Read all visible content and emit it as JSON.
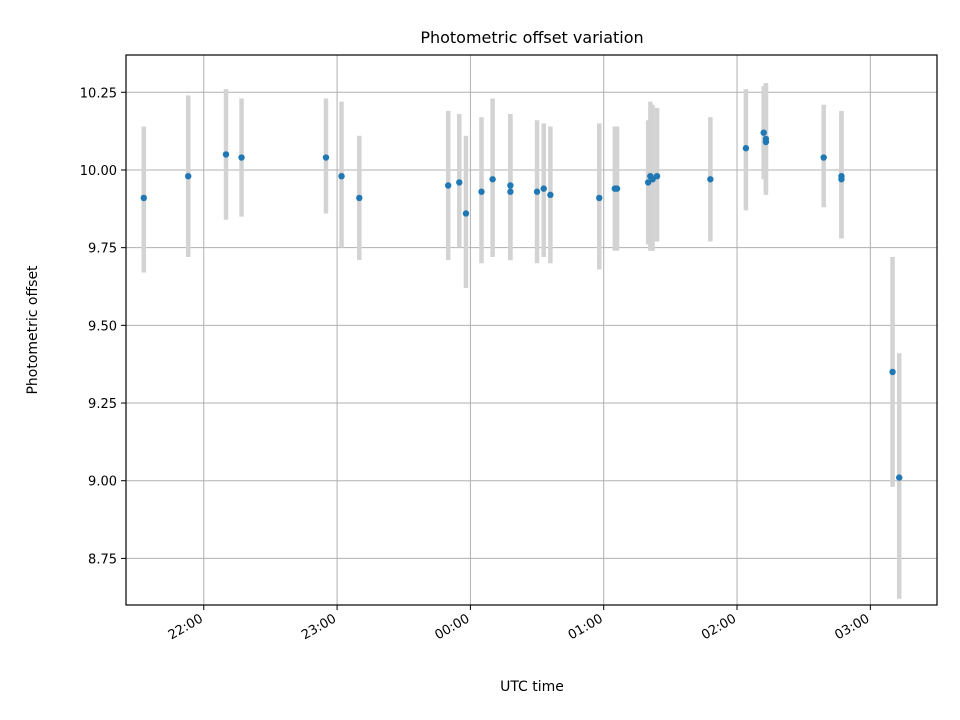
{
  "chart_data": {
    "type": "scatter",
    "title": "Photometric offset variation",
    "xlabel": "UTC time",
    "ylabel": "Photometric offset",
    "x_axis": {
      "unit": "time",
      "range": [
        "21:25",
        "03:30"
      ],
      "ticks": [
        "22:00",
        "23:00",
        "00:00",
        "01:00",
        "02:00",
        "03:00"
      ]
    },
    "y_axis": {
      "range": [
        8.6,
        10.37
      ],
      "ticks": [
        "8.75",
        "9.00",
        "9.25",
        "9.50",
        "9.75",
        "10.00",
        "10.25"
      ]
    },
    "grid": true,
    "marker_color": "#1f77b4",
    "errorbar_color": "#d3d3d3",
    "points": [
      {
        "t": "21:33",
        "y": 9.91,
        "lo": 9.67,
        "hi": 10.14
      },
      {
        "t": "21:53",
        "y": 9.98,
        "lo": 9.72,
        "hi": 10.24
      },
      {
        "t": "22:10",
        "y": 10.05,
        "lo": 9.84,
        "hi": 10.26
      },
      {
        "t": "22:17",
        "y": 10.04,
        "lo": 9.85,
        "hi": 10.23
      },
      {
        "t": "22:55",
        "y": 10.04,
        "lo": 9.86,
        "hi": 10.23
      },
      {
        "t": "23:02",
        "y": 9.98,
        "lo": 9.75,
        "hi": 10.22
      },
      {
        "t": "23:10",
        "y": 9.91,
        "lo": 9.71,
        "hi": 10.11
      },
      {
        "t": "23:50",
        "y": 9.95,
        "lo": 9.71,
        "hi": 10.19
      },
      {
        "t": "23:55",
        "y": 9.96,
        "lo": 9.75,
        "hi": 10.18
      },
      {
        "t": "23:58",
        "y": 9.86,
        "lo": 9.62,
        "hi": 10.11
      },
      {
        "t": "00:05",
        "y": 9.93,
        "lo": 9.7,
        "hi": 10.17
      },
      {
        "t": "00:10",
        "y": 9.97,
        "lo": 9.72,
        "hi": 10.23
      },
      {
        "t": "00:18",
        "y": 9.95,
        "lo": 9.71,
        "hi": 10.18
      },
      {
        "t": "00:18",
        "y": 9.93,
        "lo": 9.71,
        "hi": 10.18
      },
      {
        "t": "00:30",
        "y": 9.93,
        "lo": 9.7,
        "hi": 10.16
      },
      {
        "t": "00:33",
        "y": 9.94,
        "lo": 9.72,
        "hi": 10.15
      },
      {
        "t": "00:36",
        "y": 9.92,
        "lo": 9.7,
        "hi": 10.14
      },
      {
        "t": "00:58",
        "y": 9.91,
        "lo": 9.68,
        "hi": 10.15
      },
      {
        "t": "01:05",
        "y": 9.94,
        "lo": 9.74,
        "hi": 10.14
      },
      {
        "t": "01:06",
        "y": 9.94,
        "lo": 9.74,
        "hi": 10.14
      },
      {
        "t": "01:20",
        "y": 9.96,
        "lo": 9.76,
        "hi": 10.16
      },
      {
        "t": "01:21",
        "y": 9.98,
        "lo": 9.74,
        "hi": 10.22
      },
      {
        "t": "01:22",
        "y": 9.97,
        "lo": 9.74,
        "hi": 10.21
      },
      {
        "t": "01:24",
        "y": 9.98,
        "lo": 9.77,
        "hi": 10.2
      },
      {
        "t": "01:48",
        "y": 9.97,
        "lo": 9.77,
        "hi": 10.17
      },
      {
        "t": "02:04",
        "y": 10.07,
        "lo": 9.87,
        "hi": 10.26
      },
      {
        "t": "02:12",
        "y": 10.12,
        "lo": 9.97,
        "hi": 10.27
      },
      {
        "t": "02:13",
        "y": 10.1,
        "lo": 9.93,
        "hi": 10.28
      },
      {
        "t": "02:13",
        "y": 10.09,
        "lo": 9.92,
        "hi": 10.28
      },
      {
        "t": "02:39",
        "y": 10.04,
        "lo": 9.88,
        "hi": 10.21
      },
      {
        "t": "02:47",
        "y": 9.98,
        "lo": 9.78,
        "hi": 10.19
      },
      {
        "t": "02:47",
        "y": 9.97,
        "lo": 9.78,
        "hi": 10.18
      },
      {
        "t": "03:10",
        "y": 9.35,
        "lo": 8.98,
        "hi": 9.72
      },
      {
        "t": "03:13",
        "y": 9.01,
        "lo": 8.62,
        "hi": 9.41
      }
    ]
  }
}
